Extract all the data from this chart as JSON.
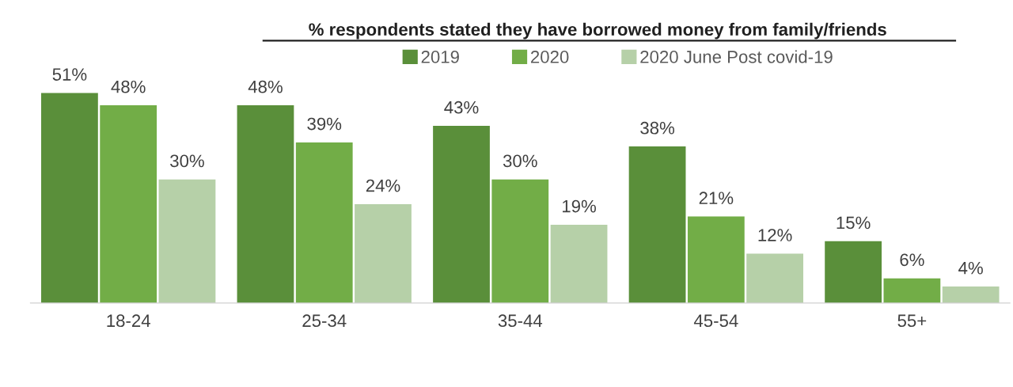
{
  "chart_data": {
    "type": "bar",
    "title": "% respondents stated they have borrowed money from family/friends",
    "categories": [
      "18-24",
      "25-34",
      "35-44",
      "45-54",
      "55+"
    ],
    "series": [
      {
        "name": "2019",
        "color": "#5a8f3a",
        "values": [
          51,
          48,
          43,
          38,
          15
        ],
        "value_labels": [
          "51%",
          "48%",
          "43%",
          "38%",
          "15%"
        ]
      },
      {
        "name": "2020",
        "color": "#72ad47",
        "values": [
          48,
          39,
          30,
          21,
          6
        ],
        "value_labels": [
          "48%",
          "39%",
          "30%",
          "21%",
          "6%"
        ]
      },
      {
        "name": "2020 June Post covid-19",
        "color": "#b6d0a8",
        "values": [
          30,
          24,
          19,
          12,
          4
        ],
        "value_labels": [
          "30%",
          "24%",
          "19%",
          "12%",
          "4%"
        ]
      }
    ],
    "legend": "top right",
    "grid": false,
    "tick_labels": "x"
  }
}
